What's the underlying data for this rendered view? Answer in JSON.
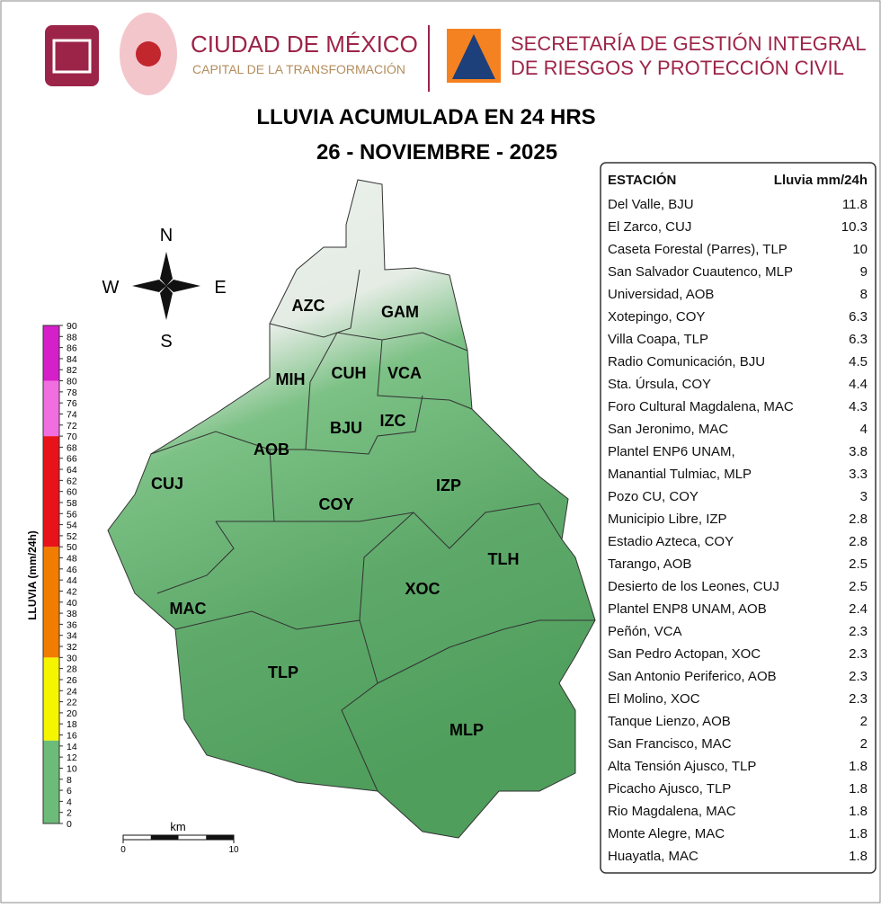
{
  "header": {
    "org1_title": "CIUDAD DE MÉXICO",
    "org1_subtitle": "CAPITAL DE LA TRANSFORMACIÓN",
    "org2_line1": "SECRETARÍA DE GESTIÓN INTEGRAL",
    "org2_line2": "DE RIESGOS Y PROTECCIÓN CIVIL"
  },
  "title": "LLUVIA ACUMULADA EN 24 HRS",
  "date": "26 - NOVIEMBRE - 2025",
  "compass": {
    "north": "N",
    "south": "S",
    "east": "E",
    "west": "W"
  },
  "boroughs": [
    "AZC",
    "GAM",
    "MIH",
    "CUH",
    "VCA",
    "BJU",
    "IZC",
    "AOB",
    "CUJ",
    "IZP",
    "COY",
    "TLH",
    "XOC",
    "MAC",
    "TLP",
    "MLP"
  ],
  "scale_bar": {
    "unit": "km",
    "ticks": [
      0,
      10
    ]
  },
  "legend": {
    "label": "LLUVIA (mm/24h)",
    "lim": [
      0,
      90
    ],
    "ticks": [
      0,
      2,
      4,
      6,
      8,
      10,
      12,
      14,
      16,
      18,
      20,
      22,
      24,
      26,
      28,
      30,
      32,
      34,
      36,
      38,
      40,
      42,
      44,
      46,
      48,
      50,
      52,
      54,
      56,
      58,
      60,
      62,
      64,
      66,
      68,
      70,
      72,
      74,
      76,
      78,
      80,
      82,
      84,
      86,
      88,
      90
    ],
    "bands": [
      {
        "from": 0,
        "to": 15,
        "color": "#6dbb78"
      },
      {
        "from": 15,
        "to": 30,
        "color": "#f5f500"
      },
      {
        "from": 30,
        "to": 50,
        "color": "#f07d00"
      },
      {
        "from": 50,
        "to": 70,
        "color": "#e8121a"
      },
      {
        "from": 70,
        "to": 80,
        "color": "#f06ee0"
      },
      {
        "from": 80,
        "to": 90,
        "color": "#d51fc8"
      }
    ]
  },
  "table": {
    "header": [
      "ESTACIÓN",
      "Lluvia mm/24h"
    ],
    "rows": [
      [
        "Del Valle, BJU",
        11.8
      ],
      [
        "El Zarco, CUJ",
        10.3
      ],
      [
        "Caseta Forestal (Parres), TLP",
        10
      ],
      [
        "San Salvador Cuautenco, MLP",
        9
      ],
      [
        "Universidad, AOB",
        8
      ],
      [
        "Xotepingo, COY",
        6.3
      ],
      [
        "Villa Coapa, TLP",
        6.3
      ],
      [
        "Radio Comunicación, BJU",
        4.5
      ],
      [
        "Sta. Úrsula, COY",
        4.4
      ],
      [
        "Foro Cultural Magdalena, MAC",
        4.3
      ],
      [
        "San Jeronimo, MAC",
        4
      ],
      [
        "Plantel ENP6 UNAM,",
        3.8
      ],
      [
        "Manantial Tulmiac, MLP",
        3.3
      ],
      [
        "Pozo CU, COY",
        3
      ],
      [
        "Municipio Libre, IZP",
        2.8
      ],
      [
        "Estadio Azteca, COY",
        2.8
      ],
      [
        "Tarango, AOB",
        2.5
      ],
      [
        "Desierto de los Leones, CUJ",
        2.5
      ],
      [
        "Plantel ENP8 UNAM, AOB",
        2.4
      ],
      [
        "Peñón, VCA",
        2.3
      ],
      [
        "San Pedro Actopan, XOC",
        2.3
      ],
      [
        "San Antonio Periferico, AOB",
        2.3
      ],
      [
        "El Molino, XOC",
        2.3
      ],
      [
        "Tanque Lienzo, AOB",
        2
      ],
      [
        "San Francisco, MAC",
        2
      ],
      [
        "Alta Tensión Ajusco, TLP",
        1.8
      ],
      [
        "Picacho Ajusco, TLP",
        1.8
      ],
      [
        "Rio Magdalena, MAC",
        1.8
      ],
      [
        "Monte Alegre, MAC",
        1.8
      ],
      [
        "Huayatla, MAC",
        1.8
      ]
    ]
  }
}
